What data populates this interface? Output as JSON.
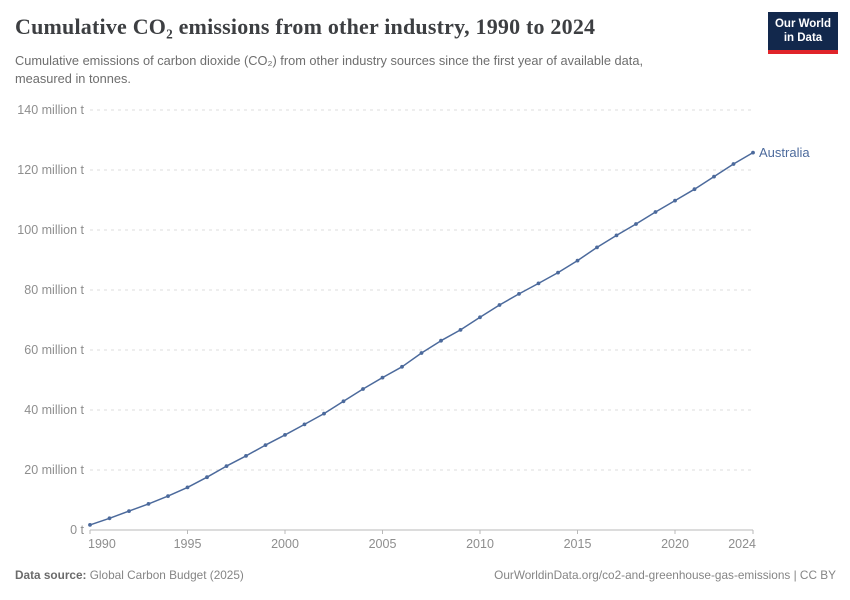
{
  "header": {
    "title": "Cumulative CO₂ emissions from other industry, 1990 to 2024",
    "subtitle_line1": "Cumulative emissions of carbon dioxide (CO₂) from other industry sources since the first year of available data,",
    "subtitle_line2": "measured in tonnes.",
    "logo": {
      "line1": "Our World",
      "line2": "in Data"
    }
  },
  "chart_data": {
    "type": "line",
    "title": "Cumulative CO₂ emissions from other industry, 1990 to 2024",
    "unit": "million t",
    "x": [
      1990,
      1991,
      1992,
      1993,
      1994,
      1995,
      1996,
      1997,
      1998,
      1999,
      2000,
      2001,
      2002,
      2003,
      2004,
      2005,
      2006,
      2007,
      2008,
      2009,
      2010,
      2011,
      2012,
      2013,
      2014,
      2015,
      2016,
      2017,
      2018,
      2019,
      2020,
      2021,
      2022,
      2023,
      2024
    ],
    "series": [
      {
        "name": "Australia",
        "color": "#4c6a9c",
        "values": [
          1.7,
          3.9,
          6.3,
          8.7,
          11.3,
          14.2,
          17.6,
          21.3,
          24.7,
          28.3,
          31.7,
          35.2,
          38.8,
          42.9,
          47.0,
          50.8,
          54.4,
          59.0,
          63.1,
          66.7,
          70.9,
          75.0,
          78.7,
          82.2,
          85.8,
          89.8,
          94.2,
          98.2,
          102.0,
          106.0,
          109.8,
          113.6,
          117.8,
          122.0,
          125.8
        ]
      }
    ],
    "xlim": [
      1990,
      2024
    ],
    "ylim": [
      0,
      140
    ],
    "xticks": [
      1990,
      1995,
      2000,
      2005,
      2010,
      2015,
      2020,
      2024
    ],
    "yticks": [
      0,
      20,
      40,
      60,
      80,
      100,
      120,
      140
    ],
    "ytick_labels": [
      "0 t",
      "20 million t",
      "40 million t",
      "60 million t",
      "80 million t",
      "100 million t",
      "120 million t",
      "140 million t"
    ],
    "grid": "dashed-horizontal",
    "legend_position": "end-of-line-label",
    "colors": {
      "grid": "#dddddd",
      "axis": "#b9b9b9",
      "tick_text": "#8e8e8e"
    }
  },
  "footer": {
    "source_label": "Data source:",
    "source_value": " Global Carbon Budget (2025)",
    "right_text": "OurWorldinData.org/co2-and-greenhouse-gas-emissions | CC BY"
  }
}
